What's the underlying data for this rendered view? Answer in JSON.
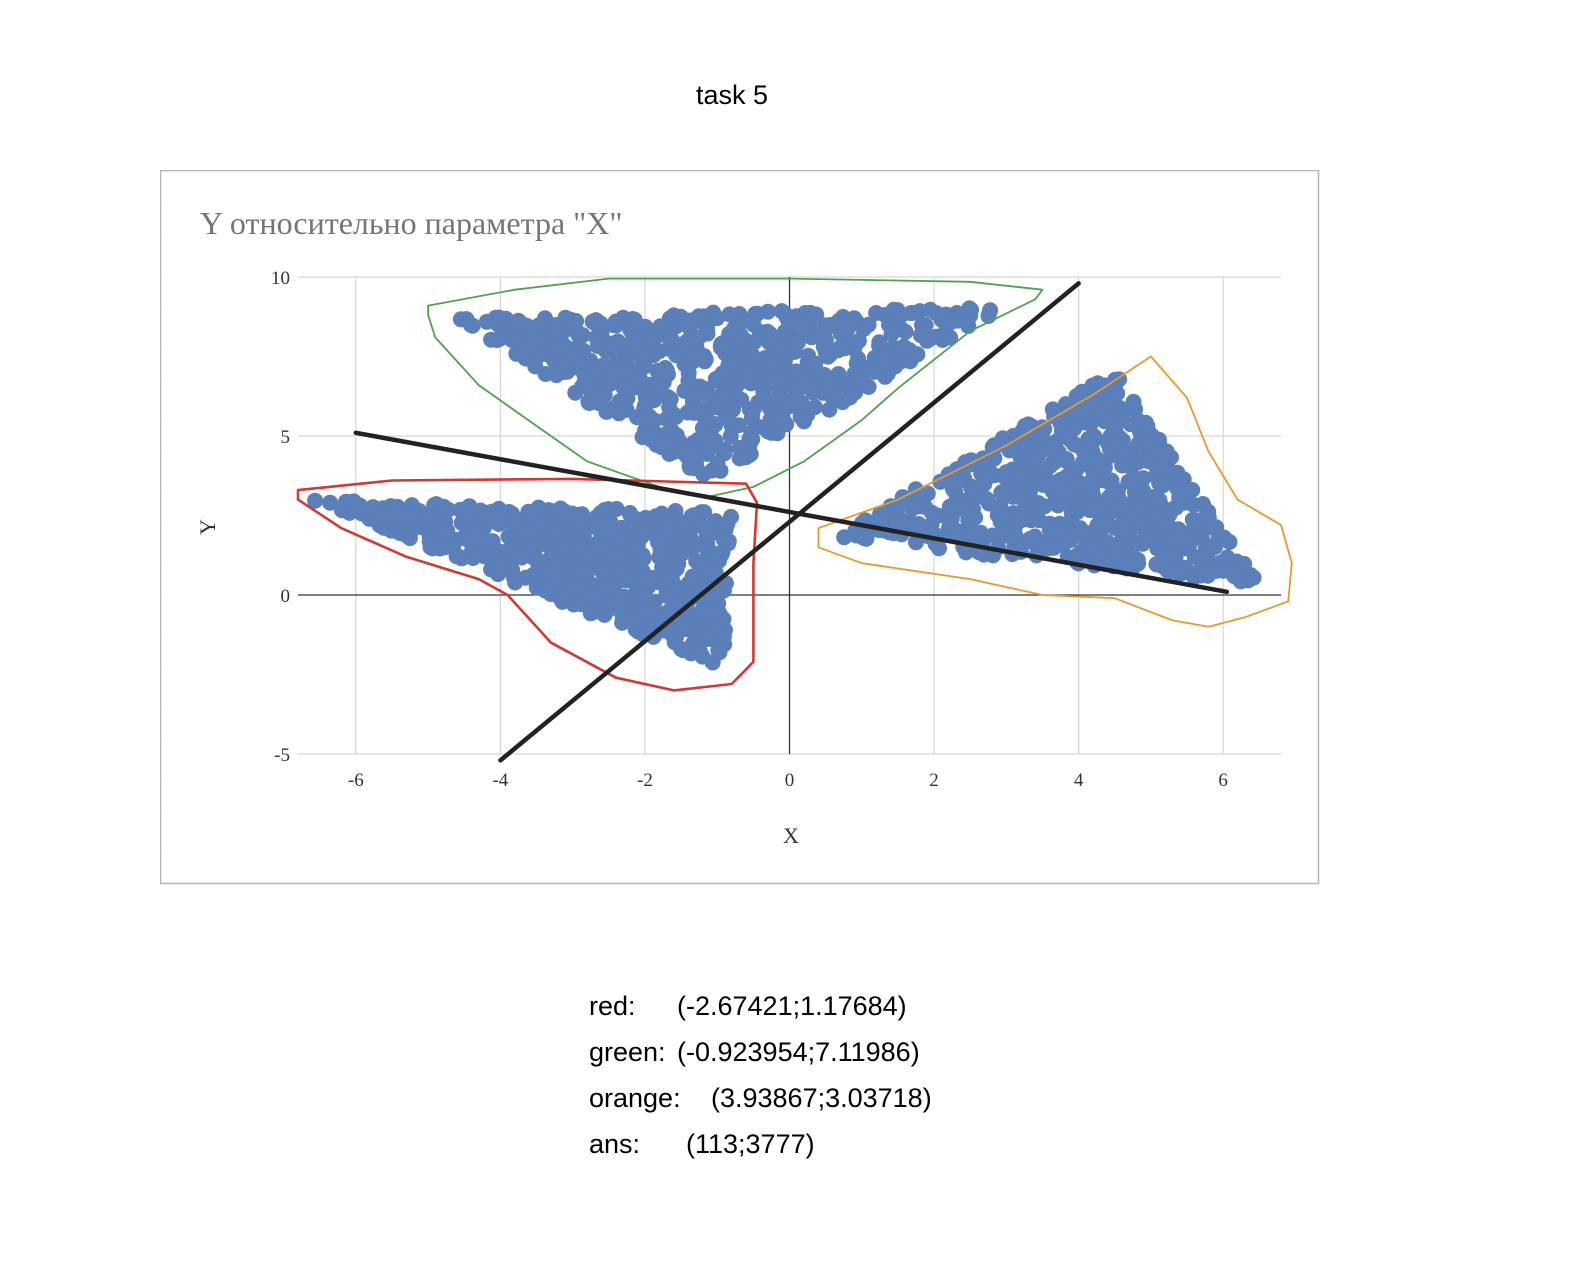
{
  "page": {
    "title": "task 5"
  },
  "chart_data": {
    "type": "scatter",
    "title": "Y относительно параметра \"X\"",
    "xlabel": "X",
    "ylabel": "Y",
    "xlim": [
      -6.8,
      6.8
    ],
    "ylim": [
      -5,
      10
    ],
    "xticks": [
      -6,
      -4,
      -2,
      0,
      2,
      4,
      6
    ],
    "yticks": [
      -5,
      0,
      5,
      10
    ],
    "grid": true,
    "marker_color": "#5b7fb8",
    "clusters": [
      {
        "name": "green",
        "outline_color": "#4fa34c",
        "approx_triangle": [
          [
            -4.6,
            8.7
          ],
          [
            3.0,
            9.1
          ],
          [
            -1.1,
            3.6
          ]
        ]
      },
      {
        "name": "red",
        "outline_color": "#d03a36",
        "approx_triangle": [
          [
            -6.6,
            3.0
          ],
          [
            -0.8,
            2.6
          ],
          [
            -0.9,
            -2.3
          ]
        ]
      },
      {
        "name": "orange",
        "outline_color": "#e8992d",
        "approx_triangle": [
          [
            0.6,
            1.8
          ],
          [
            4.5,
            7.0
          ],
          [
            6.5,
            0.3
          ]
        ]
      }
    ],
    "lines": [
      {
        "name": "line-positive",
        "from": [
          -4,
          -5.2
        ],
        "to": [
          4,
          9.8
        ],
        "color": "#222222"
      },
      {
        "name": "line-negative",
        "from": [
          -6,
          5.1
        ],
        "to": [
          6.05,
          0.1
        ],
        "color": "#222222"
      }
    ],
    "outlines": {
      "green": [
        [
          -5,
          9.1
        ],
        [
          -3.8,
          9.6
        ],
        [
          -2.5,
          9.95
        ],
        [
          0,
          9.95
        ],
        [
          2.5,
          9.85
        ],
        [
          3.5,
          9.6
        ],
        [
          3.4,
          9.3
        ],
        [
          2.5,
          8.3
        ],
        [
          1.5,
          6.5
        ],
        [
          1.0,
          5.5
        ],
        [
          0.2,
          4.2
        ],
        [
          -0.5,
          3.4
        ],
        [
          -1.1,
          3.1
        ],
        [
          -1.8,
          3.4
        ],
        [
          -2.8,
          4.2
        ],
        [
          -3.8,
          5.8
        ],
        [
          -4.3,
          6.6
        ],
        [
          -4.9,
          8.1
        ],
        [
          -5,
          8.8
        ]
      ],
      "red": [
        [
          -6.8,
          3.3
        ],
        [
          -5.5,
          3.6
        ],
        [
          -3,
          3.65
        ],
        [
          -0.6,
          3.5
        ],
        [
          -0.45,
          2.9
        ],
        [
          -0.5,
          1
        ],
        [
          -0.5,
          -2.1
        ],
        [
          -0.8,
          -2.8
        ],
        [
          -1.6,
          -3.0
        ],
        [
          -2.4,
          -2.6
        ],
        [
          -3.3,
          -1.5
        ],
        [
          -3.9,
          0
        ],
        [
          -4.3,
          0.5
        ],
        [
          -5.3,
          1.2
        ],
        [
          -6.2,
          2.1
        ],
        [
          -6.8,
          3.0
        ]
      ],
      "orange": [
        [
          0.4,
          2.1
        ],
        [
          1.5,
          3.0
        ],
        [
          3.0,
          4.7
        ],
        [
          4.2,
          6.3
        ],
        [
          4.8,
          7.2
        ],
        [
          5.0,
          7.5
        ],
        [
          5.5,
          6.2
        ],
        [
          5.8,
          4.5
        ],
        [
          6.2,
          3.0
        ],
        [
          6.8,
          2.2
        ],
        [
          6.95,
          1.0
        ],
        [
          6.9,
          -0.2
        ],
        [
          6.3,
          -0.7
        ],
        [
          5.8,
          -1.0
        ],
        [
          5.3,
          -0.8
        ],
        [
          4.5,
          -0.1
        ],
        [
          3.5,
          0
        ],
        [
          2.5,
          0.5
        ],
        [
          1.0,
          1.0
        ],
        [
          0.4,
          1.5
        ]
      ]
    }
  },
  "results": [
    {
      "label": "red:",
      "value": "(-2.67421;1.17684)"
    },
    {
      "label": "green:",
      "value": "(-0.923954;7.11986)"
    },
    {
      "label": "orange:",
      "value": "(3.93867;3.03718)"
    },
    {
      "label": "ans:",
      "value": "(113;3777)"
    }
  ]
}
